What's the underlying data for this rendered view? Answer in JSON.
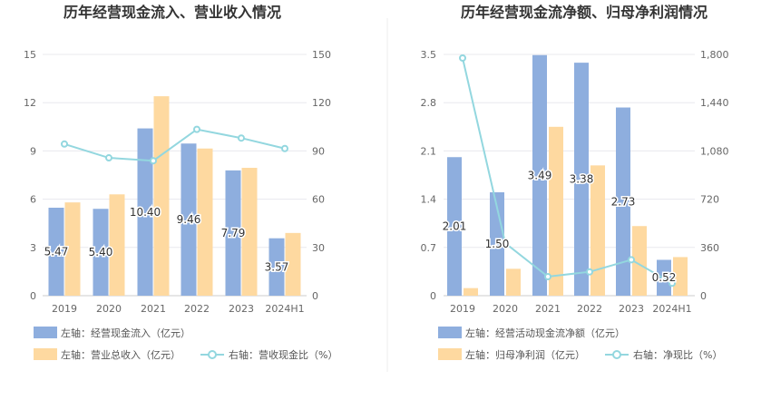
{
  "chart_data": [
    {
      "type": "bar",
      "title": "历年经营现金流入、营业收入情况",
      "categories": [
        "2019",
        "2020",
        "2021",
        "2022",
        "2023",
        "2024H1"
      ],
      "left_axis": {
        "ylim": [
          0,
          15
        ],
        "ticks": [
          "0",
          "3",
          "6",
          "9",
          "12",
          "15"
        ]
      },
      "right_axis": {
        "ylim": [
          0,
          150
        ],
        "ticks": [
          "0",
          "30",
          "60",
          "90",
          "120",
          "150"
        ]
      },
      "series": [
        {
          "name": "左轴：经营现金流入（亿元）",
          "type": "bar",
          "axis": "left",
          "color": "#8eaede",
          "values": [
            5.47,
            5.4,
            10.4,
            9.46,
            7.79,
            3.57
          ],
          "labels": [
            "5.47",
            "5.40",
            "10.40",
            "9.46",
            "7.79",
            "3.57"
          ]
        },
        {
          "name": "左轴：营业总收入（亿元）",
          "type": "bar",
          "axis": "left",
          "color": "#fed9a0",
          "values": [
            5.8,
            6.3,
            12.4,
            9.15,
            7.95,
            3.9
          ]
        },
        {
          "name": "右轴：营收现金比（%）",
          "type": "line",
          "axis": "right",
          "color": "#93d7df",
          "values": [
            94.3,
            85.7,
            83.9,
            103.4,
            98.0,
            91.5
          ]
        }
      ]
    },
    {
      "type": "bar",
      "title": "历年经营现金流净额、归母净利润情况",
      "categories": [
        "2019",
        "2020",
        "2021",
        "2022",
        "2023",
        "2024H1"
      ],
      "left_axis": {
        "ylim": [
          0,
          3.5
        ],
        "ticks": [
          "0",
          "0.7",
          "1.4",
          "2.1",
          "2.8",
          "3.5"
        ]
      },
      "right_axis": {
        "ylim": [
          0,
          1800
        ],
        "ticks": [
          "0",
          "360",
          "720",
          "1,080",
          "1,440",
          "1,800"
        ]
      },
      "series": [
        {
          "name": "左轴：经营活动现金流净额（亿元）",
          "type": "bar",
          "axis": "left",
          "color": "#8eaede",
          "values": [
            2.01,
            1.5,
            3.49,
            3.38,
            2.73,
            0.52
          ],
          "labels": [
            "2.01",
            "1.50",
            "3.49",
            "3.38",
            "2.73",
            "0.52"
          ]
        },
        {
          "name": "左轴：归母净利润（亿元）",
          "type": "bar",
          "axis": "left",
          "color": "#fed9a0",
          "values": [
            0.11,
            0.39,
            2.45,
            1.89,
            1.01,
            0.56
          ]
        },
        {
          "name": "右轴：净现比（%）",
          "type": "line",
          "axis": "right",
          "color": "#93d7df",
          "values": [
            1773,
            392,
            142,
            178,
            268,
            93
          ]
        }
      ]
    }
  ]
}
